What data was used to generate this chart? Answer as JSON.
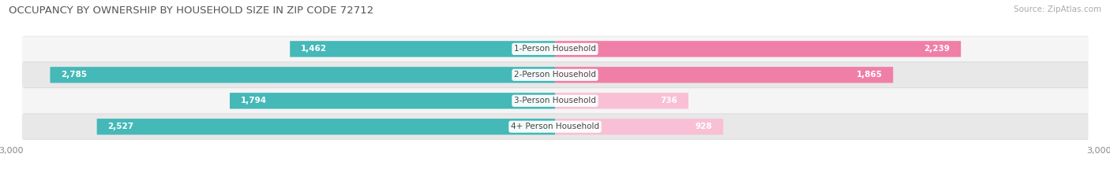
{
  "title": "OCCUPANCY BY OWNERSHIP BY HOUSEHOLD SIZE IN ZIP CODE 72712",
  "source": "Source: ZipAtlas.com",
  "categories": [
    "1-Person Household",
    "2-Person Household",
    "3-Person Household",
    "4+ Person Household"
  ],
  "owner_values": [
    1462,
    2785,
    1794,
    2527
  ],
  "renter_values": [
    2239,
    1865,
    736,
    928
  ],
  "owner_color": "#45b8b8",
  "renter_color": "#f07fa8",
  "renter_light_color": "#f9c0d5",
  "xlim": 3000,
  "title_fontsize": 9.5,
  "source_fontsize": 7.5,
  "label_fontsize": 7.5,
  "tick_fontsize": 8,
  "bar_height": 0.62,
  "background_color": "#ffffff",
  "row_bg_light": "#f5f5f5",
  "row_bg_dark": "#e8e8e8",
  "shadow_color": "#cccccc",
  "value_inside_threshold": 400
}
